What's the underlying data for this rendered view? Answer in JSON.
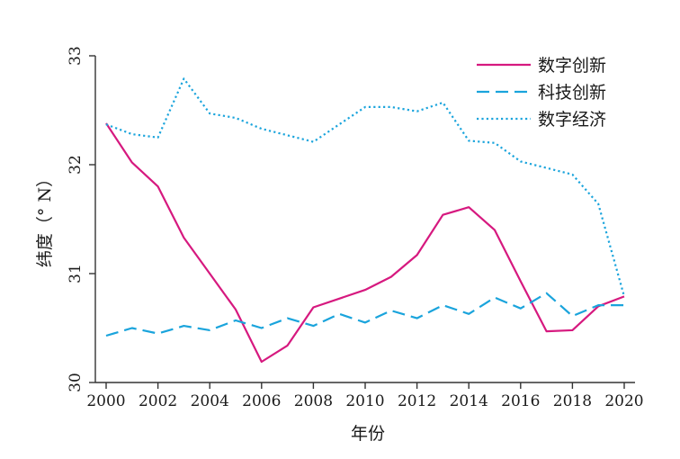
{
  "chart_data": {
    "type": "line",
    "xlabel": "年份",
    "ylabel": "纬度（° N）",
    "xlim": [
      2000,
      2020
    ],
    "ylim": [
      30,
      33
    ],
    "xticks": [
      "2000",
      "2002",
      "2004",
      "2006",
      "2008",
      "2010",
      "2012",
      "2014",
      "2016",
      "2018",
      "2020"
    ],
    "yticks": [
      "30",
      "31",
      "32",
      "33"
    ],
    "grid": false,
    "legend_position": "top-right",
    "x": [
      2000,
      2001,
      2002,
      2003,
      2004,
      2005,
      2006,
      2007,
      2008,
      2009,
      2010,
      2011,
      2012,
      2013,
      2014,
      2015,
      2016,
      2017,
      2018,
      2019,
      2020
    ],
    "series": [
      {
        "name": "数字创新",
        "color": "#d6197f",
        "style": "solid",
        "values": [
          32.38,
          32.02,
          31.8,
          31.33,
          31.0,
          30.67,
          30.19,
          30.34,
          30.69,
          30.77,
          30.85,
          30.97,
          31.17,
          31.54,
          31.61,
          31.4,
          30.93,
          30.47,
          30.48,
          30.7,
          30.79
        ]
      },
      {
        "name": "科技创新",
        "color": "#1aa4dc",
        "style": "dashed",
        "values": [
          30.43,
          30.5,
          30.45,
          30.52,
          30.48,
          30.57,
          30.5,
          30.59,
          30.52,
          30.63,
          30.55,
          30.66,
          30.59,
          30.71,
          30.63,
          30.78,
          30.68,
          30.82,
          30.61,
          30.71,
          30.71
        ]
      },
      {
        "name": "数字经济",
        "color": "#1aa4dc",
        "style": "dotted",
        "values": [
          32.37,
          32.28,
          32.25,
          32.79,
          32.47,
          32.43,
          32.33,
          32.27,
          32.21,
          32.37,
          32.53,
          32.53,
          32.49,
          32.57,
          32.22,
          32.2,
          32.03,
          31.97,
          31.91,
          31.64,
          30.79
        ]
      }
    ]
  }
}
